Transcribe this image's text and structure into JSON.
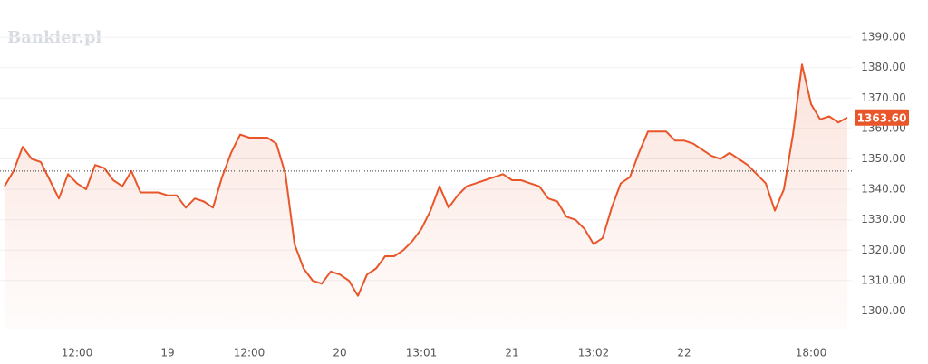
{
  "chart_data": {
    "type": "line",
    "watermark": "Bankier.pl",
    "x": [
      0,
      1,
      2,
      3,
      4,
      5,
      6,
      7,
      8,
      9,
      10,
      11,
      12,
      13,
      14,
      15,
      16,
      17,
      18,
      19,
      20,
      21,
      22,
      23,
      24,
      25,
      26,
      27,
      28,
      29,
      30,
      31,
      32,
      33,
      34,
      35,
      36,
      37,
      38,
      39,
      40,
      41,
      42,
      43,
      44,
      45,
      46,
      47,
      48,
      49,
      50,
      51,
      52,
      53,
      54,
      55,
      56,
      57,
      58,
      59,
      60,
      61,
      62,
      63,
      64,
      65,
      66,
      67,
      68,
      69,
      70,
      71,
      72,
      73,
      74,
      75,
      76,
      77,
      78,
      79,
      80,
      81,
      82,
      83,
      84,
      85,
      86,
      87,
      88,
      89,
      90,
      91,
      92,
      93
    ],
    "values": [
      1341,
      1346,
      1354,
      1350,
      1349,
      1343,
      1337,
      1345,
      1342,
      1340,
      1348,
      1347,
      1343,
      1341,
      1346,
      1339,
      1339,
      1339,
      1338,
      1338,
      1334,
      1337,
      1336,
      1334,
      1344,
      1352,
      1358,
      1357,
      1357,
      1357,
      1355,
      1345,
      1322,
      1314,
      1310,
      1309,
      1313,
      1312,
      1310,
      1305,
      1312,
      1314,
      1318,
      1318,
      1320,
      1323,
      1327,
      1333,
      1341,
      1334,
      1338,
      1341,
      1342,
      1343,
      1344,
      1345,
      1343,
      1343,
      1342,
      1341,
      1337,
      1336,
      1331,
      1330,
      1327,
      1322,
      1324,
      1334,
      1342,
      1344,
      1352,
      1359,
      1359,
      1359,
      1356,
      1356,
      1355,
      1353,
      1351,
      1350,
      1352,
      1350,
      1348,
      1345,
      1342,
      1333,
      1340,
      1358,
      1381,
      1368,
      1363,
      1364,
      1362,
      1363.6
    ],
    "color": "#e8562a",
    "xlim": [
      0,
      93
    ],
    "xticks": [
      {
        "value": 8,
        "label": "12:00"
      },
      {
        "value": 18,
        "label": "19"
      },
      {
        "value": 27,
        "label": "12:00"
      },
      {
        "value": 37,
        "label": "20"
      },
      {
        "value": 46,
        "label": "13:01"
      },
      {
        "value": 56,
        "label": "21"
      },
      {
        "value": 65,
        "label": "13:02"
      },
      {
        "value": 75,
        "label": "22"
      },
      {
        "value": 89,
        "label": "18:00"
      }
    ],
    "ylim": [
      1294.2,
      1393
    ],
    "yticks": [
      {
        "value": 1300,
        "label": "1300.00"
      },
      {
        "value": 1310,
        "label": "1310.00"
      },
      {
        "value": 1320,
        "label": "1320.00"
      },
      {
        "value": 1330,
        "label": "1330.00"
      },
      {
        "value": 1340,
        "label": "1340.00"
      },
      {
        "value": 1350,
        "label": "1350.00"
      },
      {
        "value": 1360,
        "label": "1360.00"
      },
      {
        "value": 1370,
        "label": "1370.00"
      },
      {
        "value": 1380,
        "label": "1380.00"
      },
      {
        "value": 1390,
        "label": "1390.00"
      }
    ],
    "reference_line": 1346,
    "last_value": {
      "value": 1363.6,
      "label": "1363.60"
    },
    "grid": true
  }
}
